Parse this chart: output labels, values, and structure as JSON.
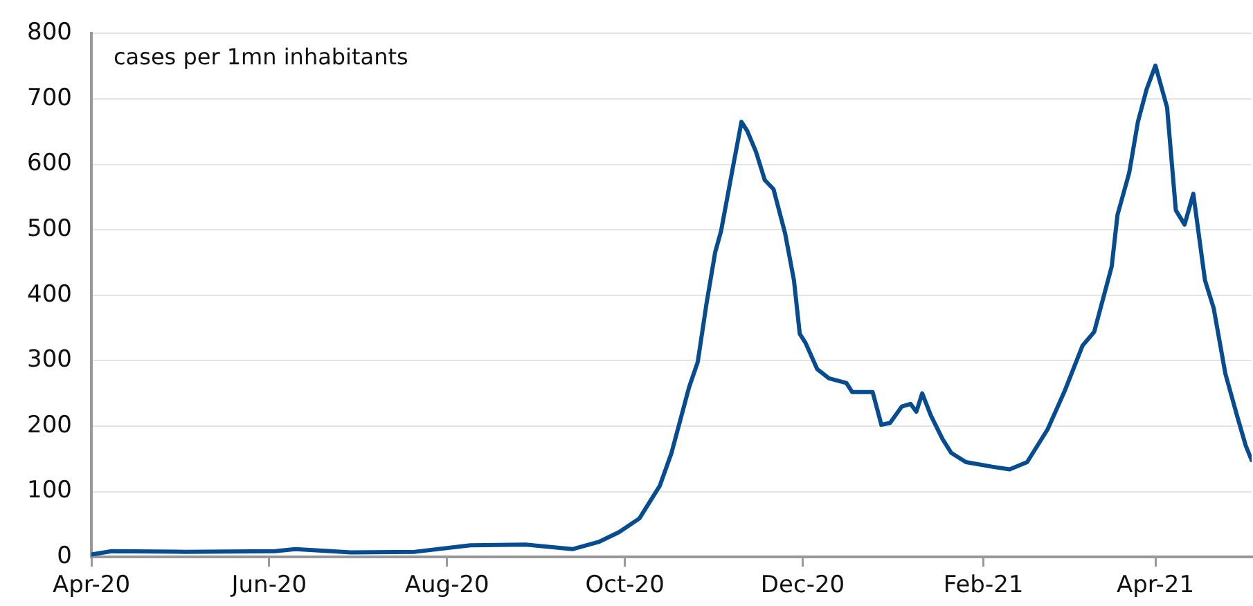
{
  "chart_data": {
    "type": "line",
    "annotations": [
      "cases per 1mn inhabitants"
    ],
    "x": [
      "2020-04-01",
      "2020-04-08",
      "2020-05-03",
      "2020-06-03",
      "2020-06-10",
      "2020-06-29",
      "2020-07-21",
      "2020-08-09",
      "2020-08-28",
      "2020-09-13",
      "2020-09-22",
      "2020-09-29",
      "2020-10-06",
      "2020-10-13",
      "2020-10-17",
      "2020-10-23",
      "2020-10-26",
      "2020-10-29",
      "2020-11-01",
      "2020-11-03",
      "2020-11-07",
      "2020-11-10",
      "2020-11-12",
      "2020-11-15",
      "2020-11-18",
      "2020-11-21",
      "2020-11-25",
      "2020-11-28",
      "2020-11-30",
      "2020-12-02",
      "2020-12-06",
      "2020-12-10",
      "2020-12-16",
      "2020-12-18",
      "2020-12-25",
      "2020-12-28",
      "2020-12-31",
      "2021-01-04",
      "2021-01-07",
      "2021-01-09",
      "2021-01-11",
      "2021-01-14",
      "2021-01-18",
      "2021-01-21",
      "2021-01-26",
      "2021-02-04",
      "2021-02-10",
      "2021-02-16",
      "2021-02-23",
      "2021-03-01",
      "2021-03-07",
      "2021-03-11",
      "2021-03-17",
      "2021-03-19",
      "2021-03-23",
      "2021-03-26",
      "2021-03-29",
      "2021-04-01",
      "2021-04-05",
      "2021-04-08",
      "2021-04-11",
      "2021-04-14",
      "2021-04-18",
      "2021-04-21",
      "2021-04-25",
      "2021-04-29",
      "2021-05-02",
      "2021-05-04"
    ],
    "series": [
      {
        "color": "#074c8f",
        "values": [
          4,
          9,
          8,
          9,
          12,
          7,
          8,
          18,
          19,
          12,
          23,
          38,
          59,
          109,
          159,
          259,
          298,
          387,
          466,
          498,
          594,
          665,
          651,
          619,
          576,
          562,
          494,
          423,
          341,
          327,
          287,
          273,
          266,
          252,
          252,
          202,
          205,
          230,
          234,
          222,
          250,
          216,
          180,
          159,
          145,
          138,
          134,
          145,
          195,
          255,
          323,
          344,
          444,
          523,
          587,
          665,
          715,
          751,
          687,
          530,
          508,
          555,
          423,
          380,
          280,
          216,
          170,
          148
        ]
      }
    ],
    "xlim": [
      "2020-04-01",
      "2021-05-04"
    ],
    "xticks": [
      {
        "value": "2020-04-01",
        "label": "Apr-20"
      },
      {
        "value": "2020-06-01",
        "label": "Jun-20"
      },
      {
        "value": "2020-08-01",
        "label": "Aug-20"
      },
      {
        "value": "2020-10-01",
        "label": "Oct-20"
      },
      {
        "value": "2020-12-01",
        "label": "Dec-20"
      },
      {
        "value": "2021-02-01",
        "label": "Feb-21"
      },
      {
        "value": "2021-04-01",
        "label": "Apr-21"
      }
    ],
    "ylim": [
      0,
      800
    ],
    "yticks": [
      0,
      100,
      200,
      300,
      400,
      500,
      600,
      700,
      800
    ],
    "grid": "y",
    "legend": false,
    "marker": "none",
    "line_style": "solid"
  }
}
